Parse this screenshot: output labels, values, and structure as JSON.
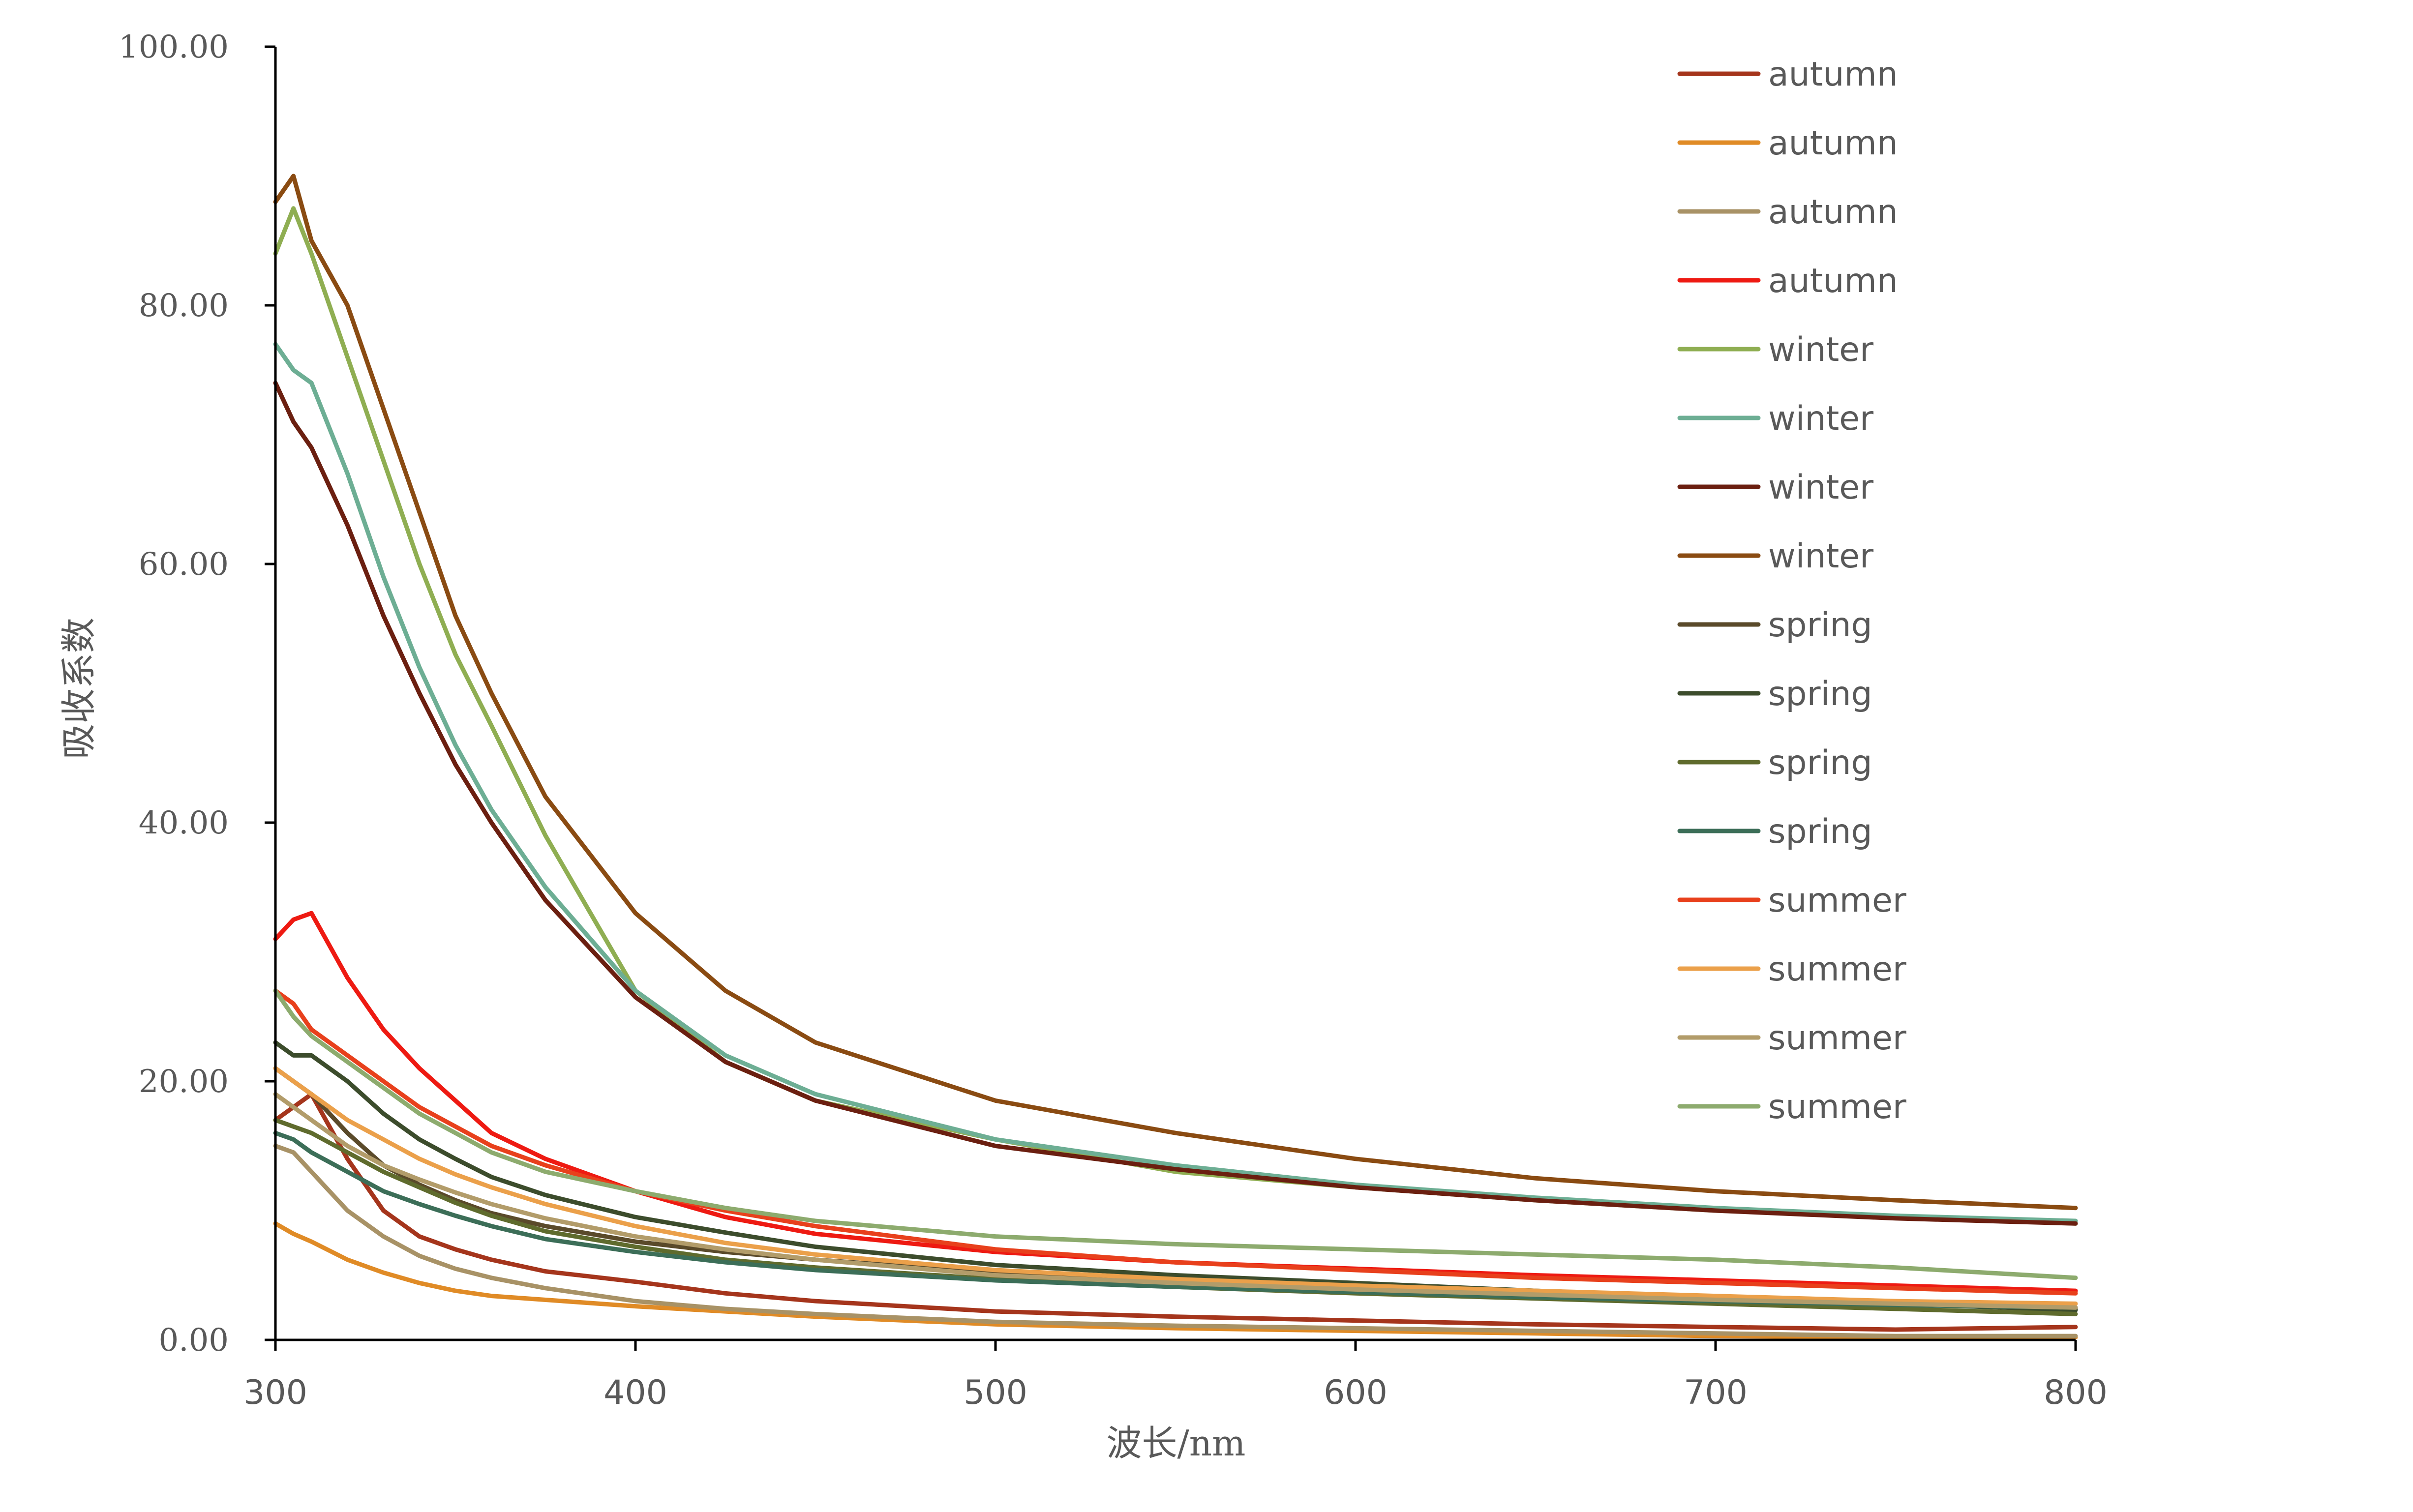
{
  "chart_data": {
    "type": "line",
    "title": "",
    "xlabel": "波长/nm",
    "ylabel": "吸收系数",
    "xlim": [
      300,
      800
    ],
    "ylim": [
      0,
      100
    ],
    "xticks": [
      "300",
      "400",
      "500",
      "600",
      "700",
      "800"
    ],
    "yticks": [
      "0.00",
      "20.00",
      "40.00",
      "60.00",
      "80.00",
      "100.00"
    ],
    "grid": false,
    "legend_position": "top-right",
    "x": [
      300,
      305,
      310,
      320,
      330,
      340,
      350,
      360,
      375,
      400,
      425,
      450,
      500,
      550,
      600,
      650,
      700,
      750,
      800
    ],
    "series": [
      {
        "name": "autumn",
        "color": "#A5351C",
        "values": [
          17.0,
          18.0,
          19.0,
          14.0,
          10.0,
          8.0,
          7.0,
          6.2,
          5.3,
          4.5,
          3.6,
          3.0,
          2.2,
          1.8,
          1.5,
          1.2,
          1.0,
          0.8,
          1.0
        ]
      },
      {
        "name": "autumn",
        "color": "#E08B26",
        "values": [
          9.0,
          8.2,
          7.6,
          6.2,
          5.2,
          4.4,
          3.8,
          3.4,
          3.1,
          2.6,
          2.2,
          1.8,
          1.2,
          0.9,
          0.7,
          0.5,
          0.3,
          0.2,
          0.2
        ]
      },
      {
        "name": "autumn",
        "color": "#A89266",
        "values": [
          15.0,
          14.5,
          13.0,
          10.0,
          8.0,
          6.5,
          5.5,
          4.8,
          4.0,
          3.0,
          2.4,
          2.0,
          1.4,
          1.1,
          0.9,
          0.7,
          0.5,
          0.3,
          0.3
        ]
      },
      {
        "name": "autumn",
        "color": "#EE1A12",
        "values": [
          31.0,
          32.5,
          33.0,
          28.0,
          24.0,
          21.0,
          18.5,
          16.0,
          14.0,
          11.5,
          9.5,
          8.2,
          6.8,
          6.0,
          5.5,
          5.0,
          4.6,
          4.2,
          3.8
        ]
      },
      {
        "name": "winter",
        "color": "#8FAE52",
        "values": [
          84.0,
          87.5,
          84.0,
          76.0,
          68.0,
          60.0,
          53.0,
          47.5,
          39.0,
          27.0,
          21.5,
          18.5,
          15.5,
          13.0,
          11.8,
          10.8,
          10.0,
          9.5,
          9.0
        ]
      },
      {
        "name": "winter",
        "color": "#6DAE94",
        "values": [
          77.0,
          75.0,
          74.0,
          67.0,
          59.0,
          52.0,
          46.0,
          41.0,
          35.0,
          27.0,
          22.0,
          19.0,
          15.5,
          13.5,
          12.0,
          11.0,
          10.2,
          9.6,
          9.2
        ]
      },
      {
        "name": "winter",
        "color": "#6B1F10",
        "values": [
          74.0,
          71.0,
          69.0,
          63.0,
          56.0,
          50.0,
          44.5,
          40.0,
          34.0,
          26.5,
          21.5,
          18.5,
          15.0,
          13.2,
          11.8,
          10.8,
          10.0,
          9.4,
          9.0
        ]
      },
      {
        "name": "winter",
        "color": "#8A4B12",
        "values": [
          88.0,
          90.0,
          85.0,
          80.0,
          72.0,
          64.0,
          56.0,
          50.0,
          42.0,
          33.0,
          27.0,
          23.0,
          18.5,
          16.0,
          14.0,
          12.5,
          11.5,
          10.8,
          10.2
        ]
      },
      {
        "name": "spring",
        "color": "#5A4A2A",
        "values": [
          21.0,
          20.0,
          19.0,
          16.0,
          13.5,
          12.0,
          10.8,
          9.8,
          8.8,
          7.6,
          6.8,
          6.2,
          5.2,
          4.6,
          4.0,
          3.6,
          3.2,
          2.8,
          2.4
        ]
      },
      {
        "name": "spring",
        "color": "#3C4C2C",
        "values": [
          23.0,
          22.0,
          22.0,
          20.0,
          17.5,
          15.5,
          14.0,
          12.6,
          11.2,
          9.5,
          8.3,
          7.2,
          5.8,
          5.0,
          4.4,
          3.8,
          3.3,
          2.8,
          2.3
        ]
      },
      {
        "name": "spring",
        "color": "#5F6B2D",
        "values": [
          17.0,
          16.5,
          16.0,
          14.5,
          13.0,
          11.8,
          10.6,
          9.6,
          8.4,
          7.2,
          6.2,
          5.6,
          4.7,
          4.1,
          3.6,
          3.2,
          2.8,
          2.4,
          2.0
        ]
      },
      {
        "name": "spring",
        "color": "#3C6E58",
        "values": [
          16.0,
          15.5,
          14.5,
          13.0,
          11.5,
          10.5,
          9.6,
          8.8,
          7.8,
          6.8,
          6.0,
          5.4,
          4.6,
          4.1,
          3.7,
          3.3,
          3.0,
          2.7,
          2.5
        ]
      },
      {
        "name": "summer",
        "color": "#E8401C",
        "values": [
          27.0,
          26.0,
          24.0,
          22.0,
          20.0,
          18.0,
          16.5,
          15.0,
          13.5,
          11.5,
          10.0,
          8.8,
          7.0,
          6.0,
          5.4,
          4.8,
          4.4,
          4.0,
          3.6
        ]
      },
      {
        "name": "summer",
        "color": "#EBA04A",
        "values": [
          21.0,
          20.0,
          19.0,
          17.0,
          15.5,
          14.0,
          12.8,
          11.8,
          10.5,
          8.8,
          7.5,
          6.6,
          5.4,
          4.7,
          4.2,
          3.8,
          3.4,
          3.0,
          2.8
        ]
      },
      {
        "name": "summer",
        "color": "#B29C6A",
        "values": [
          19.0,
          18.0,
          17.0,
          15.0,
          13.5,
          12.4,
          11.4,
          10.5,
          9.4,
          8.0,
          7.0,
          6.2,
          5.0,
          4.4,
          3.9,
          3.5,
          3.1,
          2.8,
          2.5
        ]
      },
      {
        "name": "summer",
        "color": "#8DAB6E",
        "values": [
          27.0,
          25.0,
          23.5,
          21.5,
          19.5,
          17.5,
          16.0,
          14.5,
          13.0,
          11.5,
          10.2,
          9.2,
          8.0,
          7.4,
          7.0,
          6.6,
          6.2,
          5.6,
          4.8
        ]
      }
    ]
  }
}
